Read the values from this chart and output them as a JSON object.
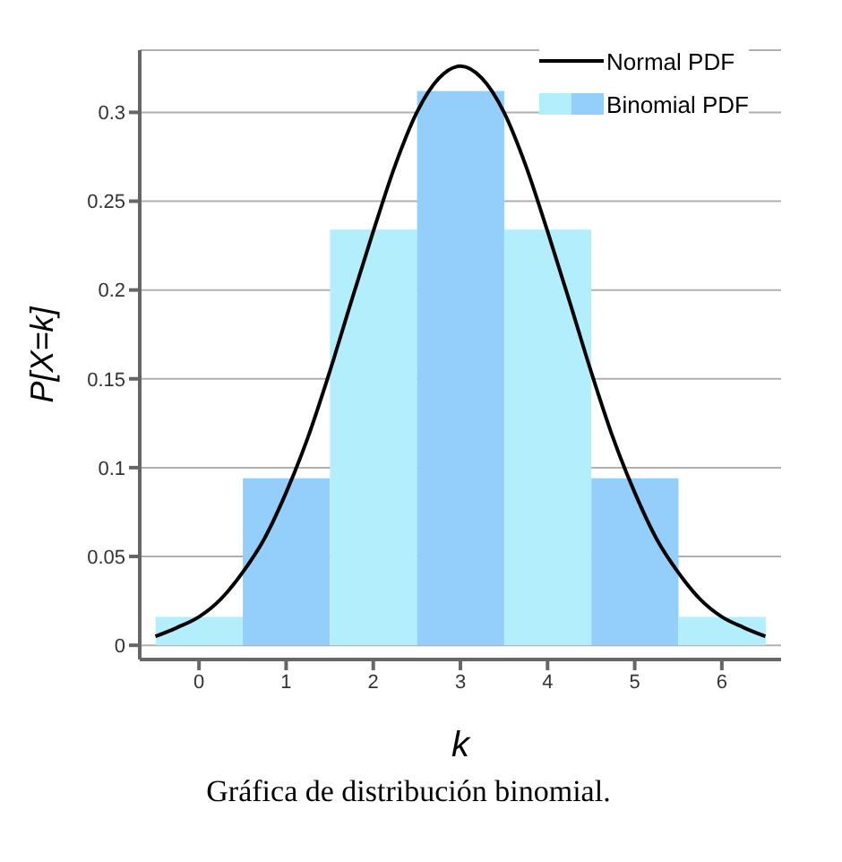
{
  "chart_data": {
    "type": "bar",
    "xlabel": "k",
    "ylabel": "P[X=k]",
    "x": [
      0,
      1,
      2,
      3,
      4,
      5,
      6
    ],
    "series": [
      {
        "name": "Binomial PDF",
        "colors": [
          "#b3eefc",
          "#94cffc",
          "#b3eefc",
          "#94cffc",
          "#b3eefc",
          "#94cffc",
          "#b3eefc"
        ],
        "values": [
          0.016,
          0.094,
          0.234,
          0.312,
          0.234,
          0.094,
          0.016
        ]
      },
      {
        "name": "Normal PDF",
        "type": "line",
        "color": "#000000",
        "x": [
          -0.5,
          -0.25,
          0,
          0.25,
          0.5,
          0.75,
          1,
          1.25,
          1.5,
          1.75,
          2,
          2.25,
          2.5,
          2.75,
          3,
          3.25,
          3.5,
          3.75,
          4,
          4.25,
          4.5,
          4.75,
          5,
          5.25,
          5.5,
          5.75,
          6,
          6.25,
          6.5
        ],
        "values": [
          0.005,
          0.01,
          0.016,
          0.026,
          0.041,
          0.06,
          0.086,
          0.117,
          0.154,
          0.194,
          0.233,
          0.27,
          0.3,
          0.319,
          0.326,
          0.319,
          0.3,
          0.27,
          0.233,
          0.194,
          0.154,
          0.117,
          0.086,
          0.06,
          0.041,
          0.026,
          0.016,
          0.01,
          0.005
        ]
      }
    ],
    "xlim": [
      -0.68,
      6.68
    ],
    "xticks": [
      0,
      1,
      2,
      3,
      4,
      5,
      6
    ],
    "ylim": [
      -0.008,
      0.335
    ],
    "yticks": [
      0,
      0.05,
      0.1,
      0.15,
      0.2,
      0.25,
      0.3
    ],
    "grid": "y",
    "legend": "top right",
    "marker": "none",
    "line_style": "solid",
    "annotations": [
      "Gráfica de distribución binomial."
    ]
  }
}
